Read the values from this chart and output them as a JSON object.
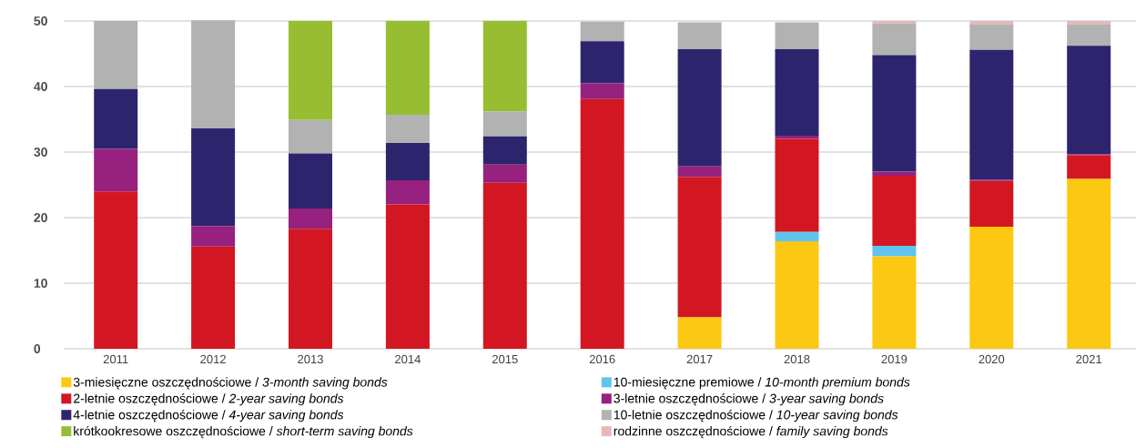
{
  "chart_data": {
    "type": "bar",
    "stacked": true,
    "categories": [
      "2011",
      "2012",
      "2013",
      "2014",
      "2015",
      "2016",
      "2017",
      "2018",
      "2019",
      "2020",
      "2021"
    ],
    "ylim": [
      0,
      50
    ],
    "yticks": [
      0,
      10,
      20,
      30,
      40,
      50
    ],
    "grid": "y",
    "legend": "bottom",
    "series": [
      {
        "name": "3-miesięczne oszczędnościowe / *3-month saving bonds*",
        "color": "#fcc812",
        "values": [
          null,
          null,
          null,
          null,
          null,
          null,
          4.8,
          16.4,
          14.1,
          18.6,
          25.9
        ]
      },
      {
        "name": "10-miesięczne premiowe / *10-month premium bonds*",
        "color": "#5fc5ef",
        "values": [
          null,
          null,
          null,
          null,
          null,
          null,
          null,
          1.4,
          1.6,
          null,
          null
        ]
      },
      {
        "name": "2-letnie oszczędnościowe / *2-year saving bonds*",
        "color": "#d31722",
        "values": [
          24.0,
          15.6,
          18.3,
          22.0,
          25.3,
          38.1,
          21.4,
          14.2,
          10.7,
          7.0,
          3.6
        ]
      },
      {
        "name": "3-letnie oszczędnościowe / *3-year saving bonds*",
        "color": "#96217f",
        "values": [
          6.5,
          3.1,
          3.1,
          3.7,
          2.8,
          2.4,
          1.6,
          0.5,
          0.6,
          0.2,
          0.2
        ]
      },
      {
        "name": "4-letnie oszczędnościowe / *4-year saving bonds*",
        "color": "#2c256e",
        "values": [
          9.1,
          14.9,
          8.4,
          5.7,
          4.3,
          6.4,
          17.9,
          13.2,
          17.8,
          19.8,
          16.5
        ]
      },
      {
        "name": "10-letnie oszczędnościowe / *10-year saving bonds*",
        "color": "#b2b2b2",
        "values": [
          10.4,
          16.5,
          5.1,
          4.3,
          3.8,
          3.0,
          4.1,
          4.1,
          4.8,
          3.9,
          3.3
        ]
      },
      {
        "name": "krótkookresowe oszczędnościowe / *short-term saving bonds*",
        "color": "#97be32",
        "values": [
          null,
          null,
          15.1,
          14.3,
          13.8,
          null,
          null,
          null,
          null,
          null,
          null
        ]
      },
      {
        "name": "rodzinne oszczędnościowe / *family saving bonds*",
        "color": "#e8b7b9",
        "values": [
          null,
          null,
          null,
          null,
          null,
          null,
          null,
          null,
          0.4,
          0.5,
          0.5
        ]
      }
    ]
  }
}
